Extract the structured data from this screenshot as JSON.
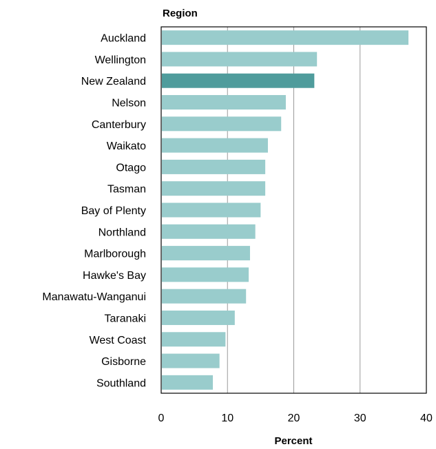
{
  "chart_data": {
    "type": "bar",
    "orientation": "horizontal",
    "ylabel": "Region",
    "xlabel": "Percent",
    "xlim": [
      0,
      40
    ],
    "xticks": [
      0,
      10,
      20,
      30,
      40
    ],
    "grid": "vertical",
    "categories": [
      "Auckland",
      "Wellington",
      "New Zealand",
      "Nelson",
      "Canterbury",
      "Waikato",
      "Otago",
      "Tasman",
      "Bay of Plenty",
      "Northland",
      "Marlborough",
      "Hawke's Bay",
      "Manawatu-Wanganui",
      "Taranaki",
      "West Coast",
      "Gisborne",
      "Southland"
    ],
    "values": [
      37.3,
      23.5,
      23.1,
      18.8,
      18.1,
      16.1,
      15.7,
      15.7,
      15.0,
      14.2,
      13.4,
      13.2,
      12.8,
      11.1,
      9.7,
      8.8,
      7.8
    ],
    "highlight": "New Zealand",
    "colors": {
      "bar": "#99cccc",
      "highlight": "#4f9c9c",
      "grid": "#9a9a9a",
      "axis": "#000000"
    }
  }
}
